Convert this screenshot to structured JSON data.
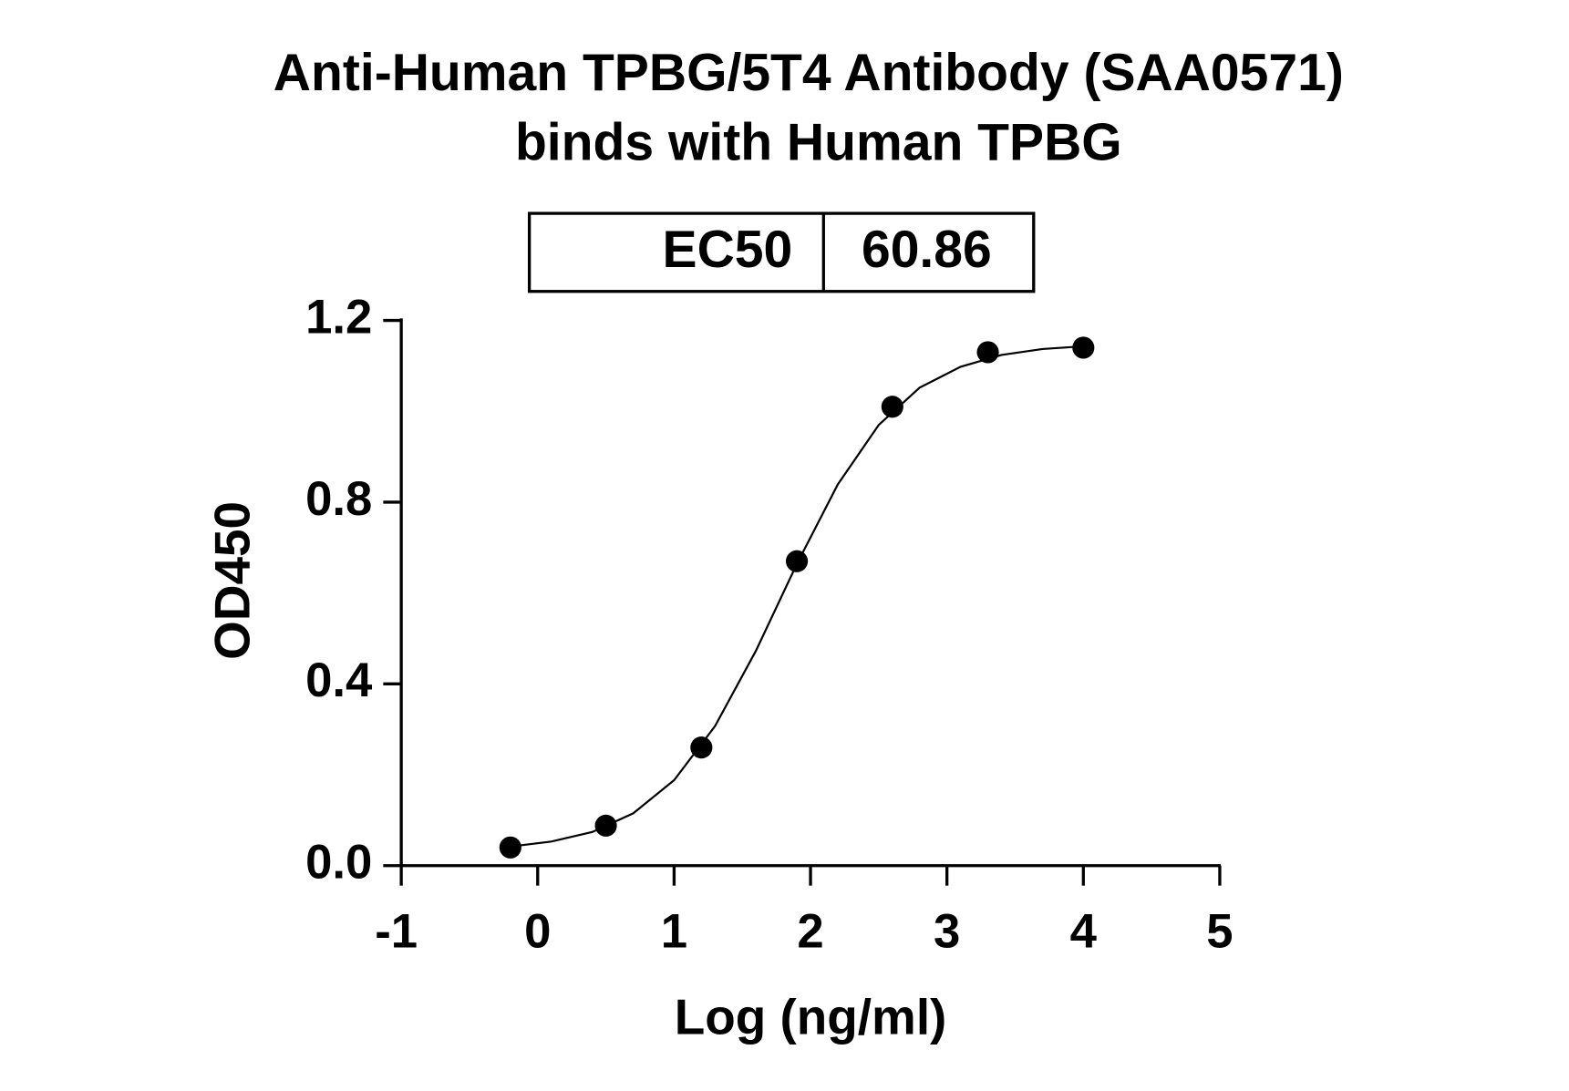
{
  "chart_data": {
    "type": "scatter",
    "title": [
      "Anti-Human TPBG/5T4 Antibody (SAA0571)",
      "binds with Human TPBG"
    ],
    "table": {
      "label": "EC50",
      "value": 60.86
    },
    "x_label": "Log (ng/ml)",
    "y_label": "OD450",
    "x": [
      -0.2,
      0.5,
      1.2,
      1.9,
      2.6,
      3.3,
      4.0
    ],
    "values": [
      0.04,
      0.088,
      0.26,
      0.67,
      1.01,
      1.13,
      1.14
    ],
    "fit": {
      "x": [
        -0.2,
        0.1,
        0.4,
        0.7,
        1.0,
        1.3,
        1.6,
        1.9,
        2.2,
        2.5,
        2.8,
        3.1,
        3.4,
        3.7,
        4.0
      ],
      "values": [
        0.042,
        0.053,
        0.074,
        0.115,
        0.188,
        0.307,
        0.473,
        0.664,
        0.839,
        0.97,
        1.052,
        1.098,
        1.124,
        1.137,
        1.143
      ]
    },
    "color": "#000000",
    "xlim": [
      -1,
      5
    ],
    "xticks": [
      -1,
      0,
      1,
      2,
      3,
      4,
      5
    ],
    "ylim": [
      0,
      1.2
    ],
    "yticks": [
      {
        "value": 0,
        "label": "0.0"
      },
      0.4,
      0.8,
      1.2
    ]
  }
}
